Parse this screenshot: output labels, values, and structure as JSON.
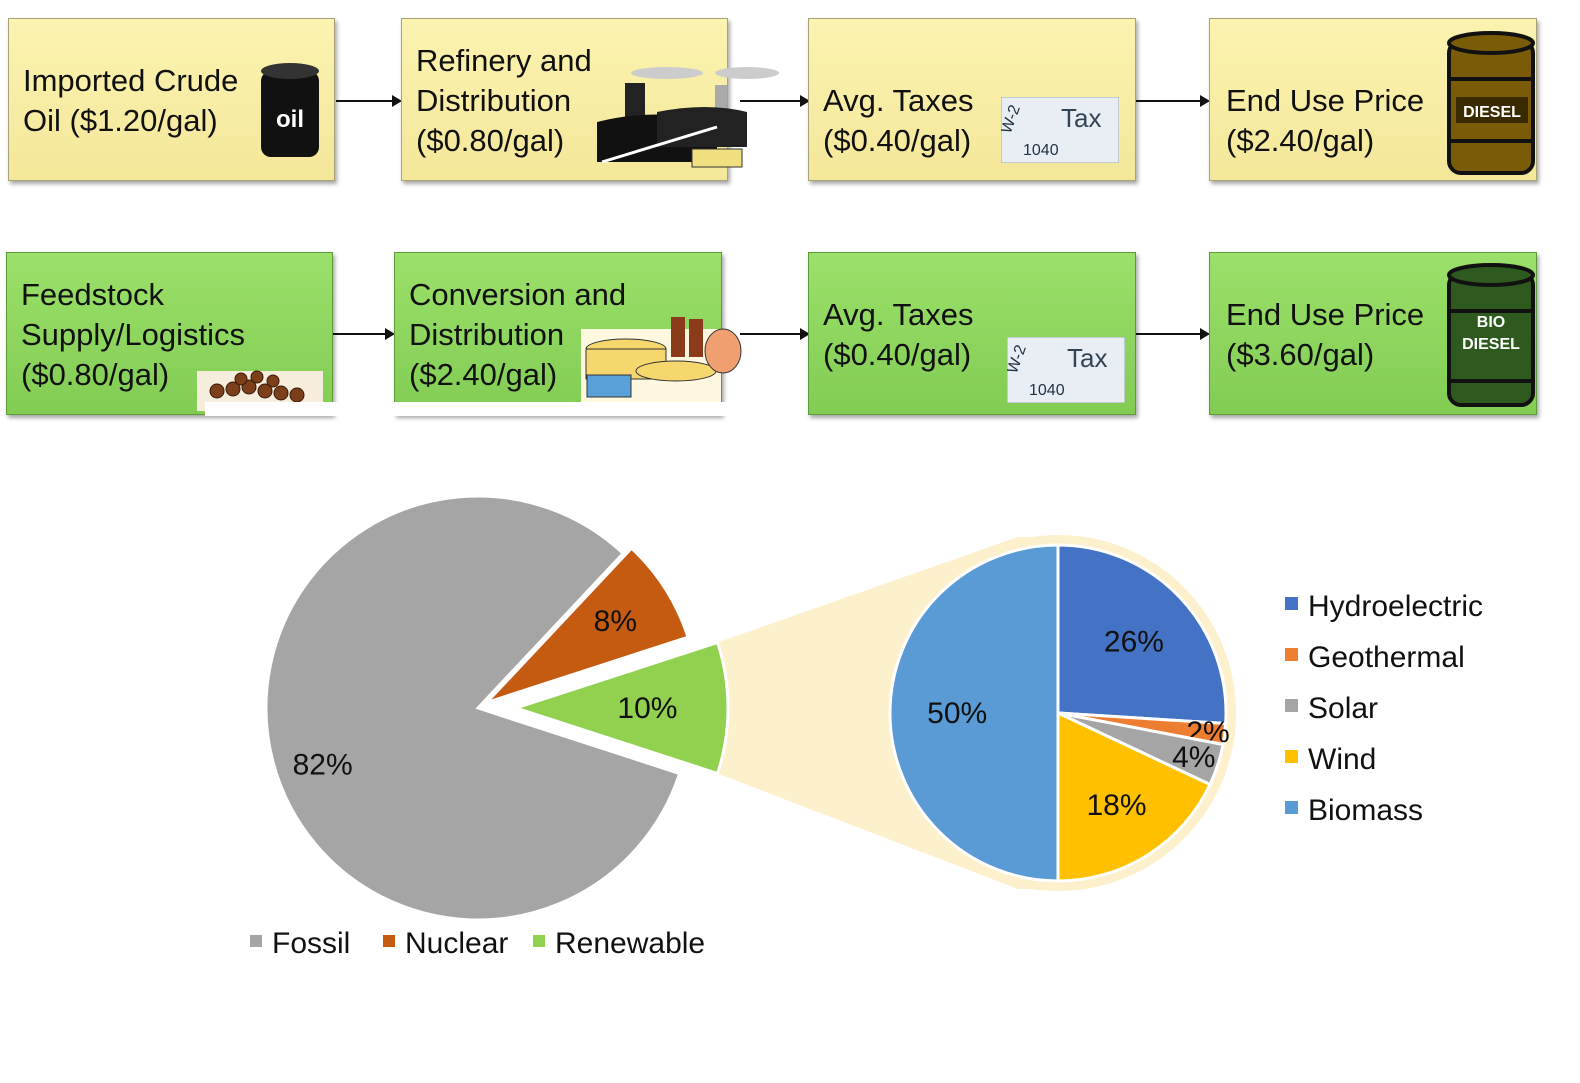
{
  "row1": [
    {
      "label": "Imported Crude\nOil ($1.20/gal)",
      "icon": "oil-barrel-icon",
      "icon_text": "oil"
    },
    {
      "label": "Refinery and\nDistribution\n($0.80/gal)",
      "icon": "refinery-icon"
    },
    {
      "label": "Avg. Taxes\n($0.40/gal)",
      "icon": "tax-form-icon"
    },
    {
      "label": "End Use Price\n($2.40/gal)",
      "icon": "diesel-barrel-icon",
      "icon_text": "DIESEL"
    }
  ],
  "row2": [
    {
      "label": "Feedstock\nSupply/Logistics\n($0.80/gal)",
      "icon": "wood-logs-icon"
    },
    {
      "label": "Conversion and\nDistribution\n($2.40/gal)",
      "icon": "biorefinery-icon"
    },
    {
      "label": "Avg. Taxes\n($0.40/gal)",
      "icon": "tax-form-icon"
    },
    {
      "label": "End Use Price\n($3.60/gal)",
      "icon": "biodiesel-barrel-icon",
      "icon_text": "BIO\nDIESEL"
    }
  ],
  "tax_form_text": {
    "form": "W-2",
    "title": "Tax",
    "number": "1040"
  },
  "colors": {
    "yellow_box": "#f4e79a",
    "green_box": "#82cc54",
    "fossil": "#a5a5a5",
    "nuclear": "#c55a11",
    "renewable": "#92d050",
    "hydro": "#4472c4",
    "geo": "#ed7d31",
    "solar": "#a5a5a5",
    "wind": "#ffc000",
    "biomass": "#5b9bd5",
    "zoom_band": "#fdf0cc"
  },
  "chart_data": [
    {
      "type": "pie",
      "categories": [
        "Fossil",
        "Nuclear",
        "Renewable"
      ],
      "values": [
        82,
        8,
        10
      ],
      "data_labels": [
        "82%",
        "8%",
        "10%"
      ],
      "legend": "bottom"
    },
    {
      "type": "pie",
      "categories": [
        "Hydroelectric",
        "Geothermal",
        "Solar",
        "Wind",
        "Biomass"
      ],
      "values": [
        26,
        2,
        4,
        18,
        50
      ],
      "data_labels": [
        "26%",
        "2%",
        "4%",
        "18%",
        "50%"
      ],
      "legend": "right"
    }
  ]
}
